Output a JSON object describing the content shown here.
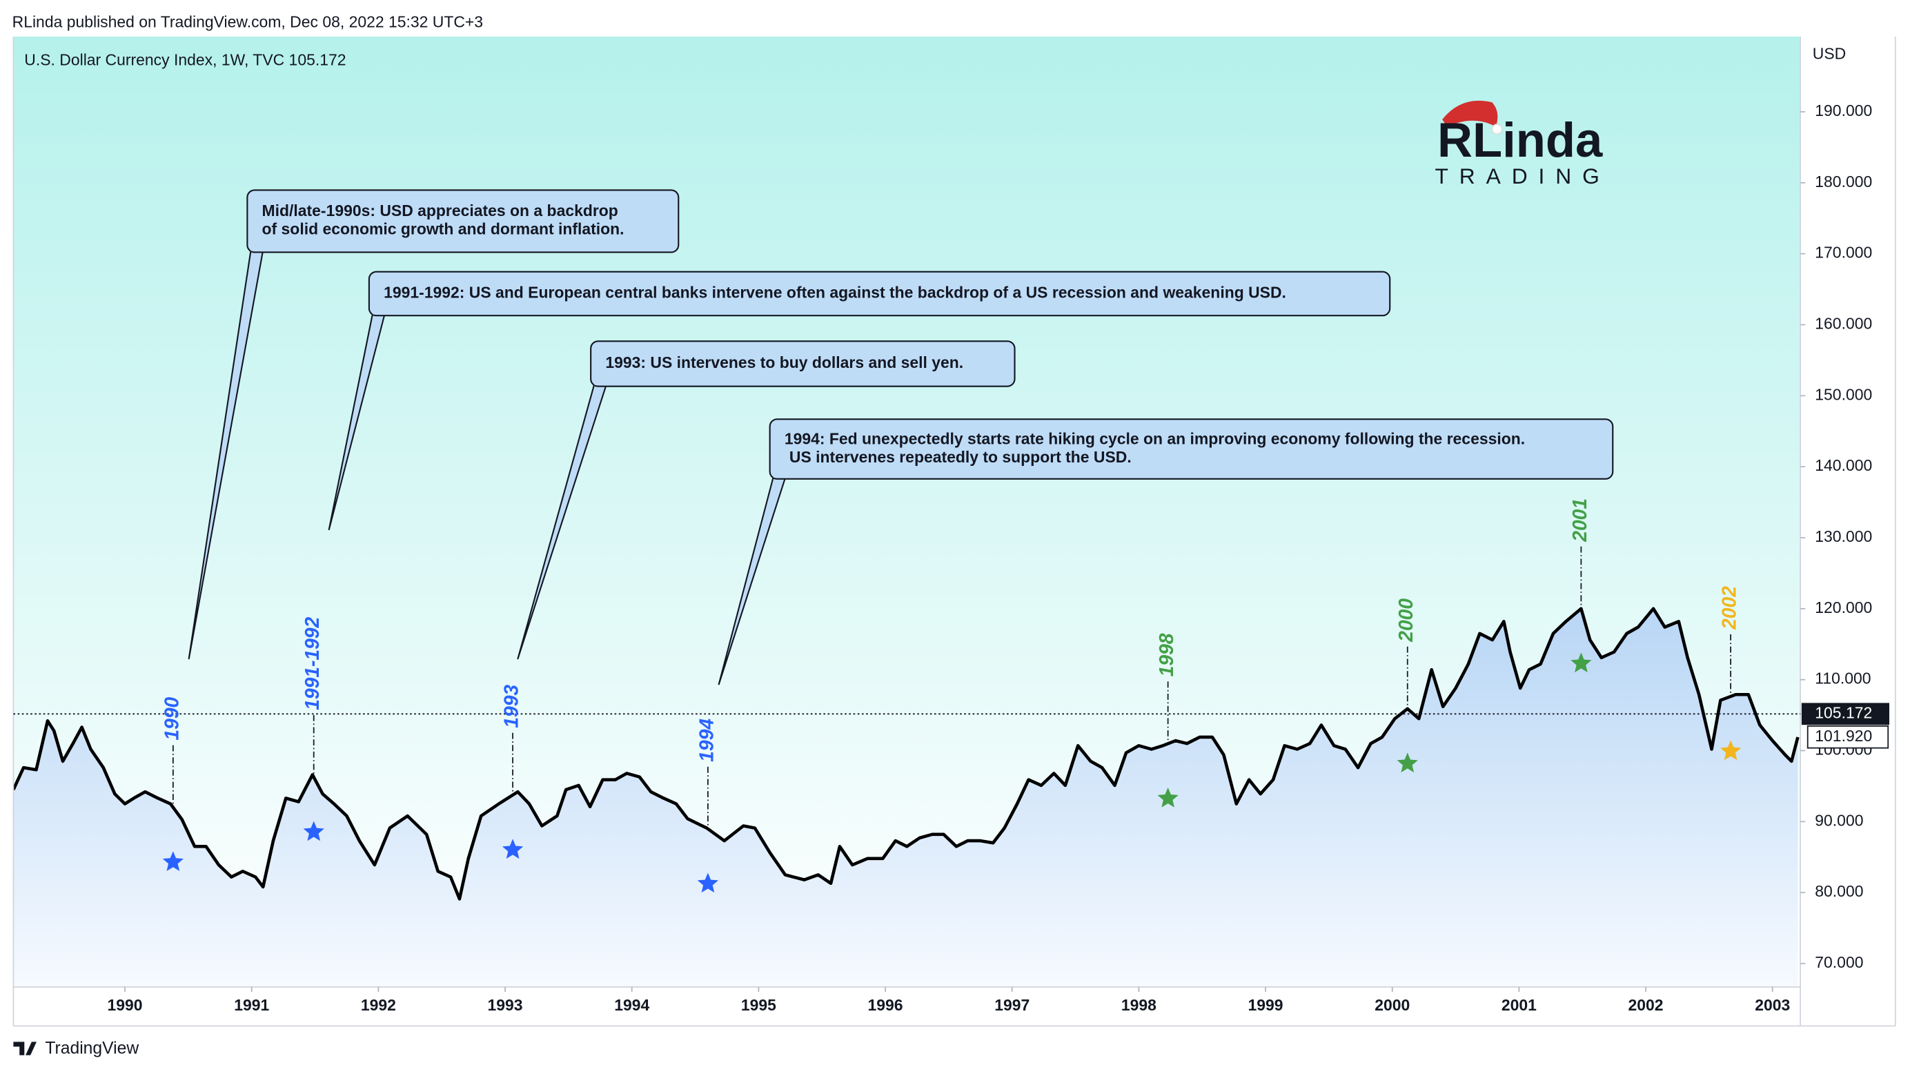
{
  "header": "RLinda published on TradingView.com, Dec 08, 2022 15:32 UTC+3",
  "footer": "TradingView",
  "logo": {
    "name": "RLinda",
    "sub": "TRADING"
  },
  "chart_data": {
    "type": "line",
    "title": "U.S. Dollar Currency Index, 1W, TVC  105.172",
    "y_axis_label": "USD",
    "color": "#000000",
    "x": [
      1989.12,
      1989.2,
      1989.3,
      1989.39,
      1989.44,
      1989.51,
      1989.59,
      1989.66,
      1989.73,
      1989.83,
      1989.92,
      1990.0,
      1990.07,
      1990.16,
      1990.26,
      1990.36,
      1990.45,
      1990.55,
      1990.64,
      1990.74,
      1990.84,
      1990.93,
      1991.03,
      1991.09,
      1991.17,
      1991.27,
      1991.37,
      1991.48,
      1991.56,
      1991.65,
      1991.75,
      1991.85,
      1991.97,
      1992.09,
      1992.23,
      1992.38,
      1992.47,
      1992.57,
      1992.64,
      1992.71,
      1992.81,
      1992.95,
      1993.1,
      1993.19,
      1993.29,
      1993.41,
      1993.48,
      1993.58,
      1993.67,
      1993.77,
      1993.87,
      1993.96,
      1994.06,
      1994.15,
      1994.25,
      1994.35,
      1994.44,
      1994.59,
      1994.73,
      1994.88,
      1994.97,
      1995.09,
      1995.21,
      1995.36,
      1995.47,
      1995.57,
      1995.64,
      1995.74,
      1995.86,
      1995.98,
      1996.08,
      1996.17,
      1996.27,
      1996.37,
      1996.46,
      1996.56,
      1996.65,
      1996.75,
      1996.85,
      1996.94,
      1997.04,
      1997.13,
      1997.23,
      1997.33,
      1997.42,
      1997.52,
      1997.62,
      1997.71,
      1997.81,
      1997.9,
      1998.0,
      1998.1,
      1998.19,
      1998.29,
      1998.38,
      1998.48,
      1998.58,
      1998.67,
      1998.77,
      1998.87,
      1998.96,
      1999.06,
      1999.15,
      1999.25,
      1999.35,
      1999.44,
      1999.54,
      1999.63,
      1999.73,
      1999.83,
      1999.92,
      2000.02,
      2000.12,
      2000.21,
      2000.31,
      2000.4,
      2000.5,
      2000.6,
      2000.69,
      2000.79,
      2000.88,
      2000.93,
      2001.01,
      2001.08,
      2001.17,
      2001.27,
      2001.37,
      2001.49,
      2001.56,
      2001.65,
      2001.75,
      2001.85,
      2001.94,
      2002.06,
      2002.15,
      2002.26,
      2002.33,
      2002.42,
      2002.52,
      2002.59,
      2002.71,
      2002.81,
      2002.9,
      2003.0,
      2003.1,
      2003.15,
      2003.2
    ],
    "values": [
      94.5,
      97.6,
      97.3,
      104.2,
      102.8,
      98.5,
      101.0,
      103.3,
      100.2,
      97.6,
      93.9,
      92.5,
      93.3,
      94.2,
      93.3,
      92.5,
      90.3,
      86.5,
      86.5,
      83.9,
      82.2,
      83.0,
      82.2,
      80.8,
      87.3,
      93.3,
      92.8,
      96.6,
      93.9,
      92.5,
      90.8,
      87.3,
      83.9,
      89.1,
      90.8,
      88.2,
      83.0,
      82.2,
      79.1,
      84.8,
      90.8,
      92.5,
      94.2,
      92.5,
      89.4,
      90.8,
      94.5,
      95.1,
      92.1,
      95.9,
      95.9,
      96.8,
      96.3,
      94.2,
      93.3,
      92.5,
      90.4,
      89.1,
      87.3,
      89.4,
      89.1,
      85.6,
      82.5,
      81.8,
      82.5,
      81.3,
      86.5,
      83.9,
      84.8,
      84.8,
      87.3,
      86.5,
      87.7,
      88.2,
      88.2,
      86.5,
      87.3,
      87.3,
      87.0,
      89.1,
      92.5,
      95.9,
      95.1,
      96.8,
      95.1,
      100.7,
      98.5,
      97.6,
      95.1,
      99.7,
      100.7,
      100.2,
      100.7,
      101.4,
      101.0,
      101.9,
      101.9,
      99.4,
      92.5,
      95.9,
      93.9,
      95.9,
      100.7,
      100.2,
      101.0,
      103.6,
      100.7,
      100.2,
      97.6,
      101.0,
      101.9,
      104.5,
      105.9,
      104.5,
      111.4,
      106.2,
      108.8,
      112.2,
      116.5,
      115.6,
      118.2,
      113.9,
      108.8,
      111.4,
      112.2,
      116.5,
      118.2,
      120.0,
      115.6,
      113.1,
      113.9,
      116.5,
      117.4,
      120.0,
      117.4,
      118.2,
      113.1,
      107.9,
      100.2,
      107.1,
      107.9,
      107.9,
      103.6,
      101.4,
      99.4,
      98.5,
      101.9
    ],
    "xlim": [
      1989.12,
      2003.22
    ],
    "xticks": [
      1990,
      1991,
      1992,
      1993,
      1994,
      1995,
      1996,
      1997,
      1998,
      1999,
      2000,
      2001,
      2002,
      2003
    ],
    "ylim": [
      66.7,
      200.6
    ],
    "yticks": [
      {
        "value": 70,
        "label": "70.000"
      },
      {
        "value": 80,
        "label": "80.000"
      },
      {
        "value": 90,
        "label": "90.000"
      },
      {
        "value": 100,
        "label": "100.000"
      },
      {
        "value": 110,
        "label": "110.000"
      },
      {
        "value": 120,
        "label": "120.000"
      },
      {
        "value": 130,
        "label": "130.000"
      },
      {
        "value": 140,
        "label": "140.000"
      },
      {
        "value": 150,
        "label": "150.000"
      },
      {
        "value": 160,
        "label": "160.000"
      },
      {
        "value": 170,
        "label": "170.000"
      },
      {
        "value": 180,
        "label": "180.000"
      },
      {
        "value": 190,
        "label": "190.000"
      }
    ],
    "last_price": 105.172,
    "price_marker": {
      "value": 101.92,
      "label": "101.920"
    },
    "annotations": [
      {
        "text": "1990",
        "x": 1990.38,
        "color": "#2962ff"
      },
      {
        "text": "1991-1992",
        "x": 1991.49,
        "color": "#2962ff"
      },
      {
        "text": "1993",
        "x": 1993.06,
        "color": "#2962ff"
      },
      {
        "text": "1994",
        "x": 1994.6,
        "color": "#2962ff"
      },
      {
        "text": "1998",
        "x": 1998.23,
        "color": "#43a047"
      },
      {
        "text": "2000",
        "x": 2000.12,
        "color": "#43a047"
      },
      {
        "text": "2001",
        "x": 2001.49,
        "color": "#43a047"
      },
      {
        "text": "2002",
        "x": 2002.67,
        "color": "#f2b51e"
      }
    ],
    "callouts": [
      {
        "lines": [
          "Mid/late-1990s: USD appreciates on a backdrop",
          "of solid economic growth and dormant inflation."
        ]
      },
      {
        "lines": [
          "1991-1992: US and European central banks intervene often against the backdrop of a US recession and weakening USD."
        ]
      },
      {
        "lines": [
          "1993: US intervenes to buy dollars and sell yen."
        ]
      },
      {
        "lines": [
          "1994: Fed unexpectedly starts rate hiking cycle on an improving economy following the recession.",
          "US intervenes repeatedly to support the USD."
        ]
      }
    ]
  }
}
